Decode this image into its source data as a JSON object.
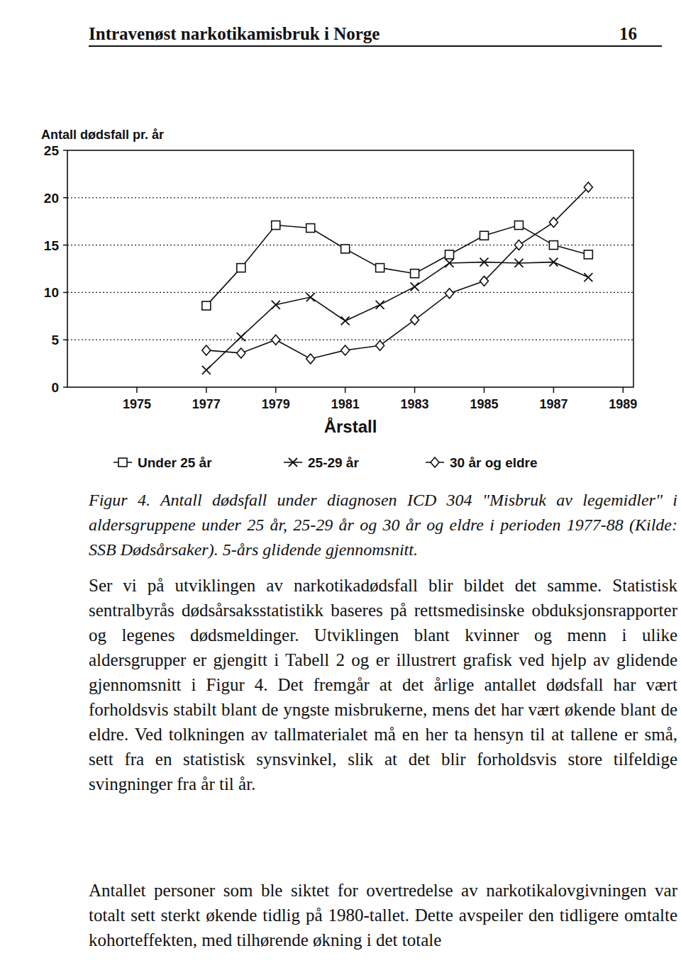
{
  "header": {
    "title": "Intravenøst narkotikamisbruk i Norge",
    "page": "16"
  },
  "chart_data": {
    "type": "line",
    "y_label": "Antall dødsfall pr. år",
    "x_label": "Årstall",
    "x": [
      1977,
      1978,
      1979,
      1980,
      1981,
      1982,
      1983,
      1984,
      1985,
      1986,
      1987,
      1988
    ],
    "series": [
      {
        "name": "Under 25 år",
        "color": "#111111",
        "marker": "square",
        "values": [
          8.6,
          12.6,
          17.1,
          16.8,
          14.6,
          12.6,
          12.0,
          14.0,
          16.0,
          17.1,
          15.0,
          14.0
        ]
      },
      {
        "name": "25-29 år",
        "color": "#111111",
        "marker": "x",
        "values": [
          1.8,
          5.3,
          8.7,
          9.5,
          7.0,
          8.7,
          10.6,
          13.1,
          13.2,
          13.1,
          13.2,
          11.6
        ]
      },
      {
        "name": "30 år og eldre",
        "color": "#111111",
        "marker": "diamond",
        "values": [
          3.9,
          3.6,
          5.0,
          3.0,
          3.9,
          4.4,
          7.1,
          9.9,
          11.2,
          15.0,
          17.4,
          21.1
        ]
      }
    ],
    "xlim": [
      1973,
      1989.3
    ],
    "xticks": [
      1975,
      1977,
      1979,
      1981,
      1983,
      1985,
      1987,
      1989
    ],
    "ylim": [
      0,
      25
    ],
    "yticks": [
      0,
      5,
      10,
      15,
      20,
      25
    ],
    "grid": true,
    "legend": "bottom"
  },
  "caption": "Figur 4. Antall dødsfall under diagnosen ICD 304 \"Misbruk av legemidler\" i aldersgruppene under 25 år, 25-29 år og 30 år og eldre i perioden 1977-88 (Kilde: SSB Dødsårsaker). 5-års glidende gjennomsnitt.",
  "paragraphs": [
    "Ser vi på utviklingen av narkotikadødsfall blir bildet det samme. Statistisk sentralbyrås dødsårsaksstatistikk baseres på rettsmedisinske obduksjonsrapporter og legenes dødsmeldinger. Utviklingen blant kvinner og menn i ulike aldersgrupper er gjengitt i Tabell 2 og er illustrert grafisk ved hjelp av glidende gjennomsnitt i Figur 4. Det fremgår at det årlige antallet dødsfall har vært forholdsvis stabilt blant de yngste misbrukerne, mens det har vært økende blant de eldre. Ved tolkningen av tallmaterialet må en her ta hensyn til at tallene er små, sett fra en statistisk synsvinkel, slik at det blir forholdsvis store tilfeldige svingninger fra år til år.",
    "Antallet personer som ble siktet for overtredelse av narkotikalovgivningen var totalt sett sterkt økende tidlig på 1980-tallet. Dette avspeiler den tidligere omtalte kohorteffekten, med tilhørende økning i det totale"
  ]
}
